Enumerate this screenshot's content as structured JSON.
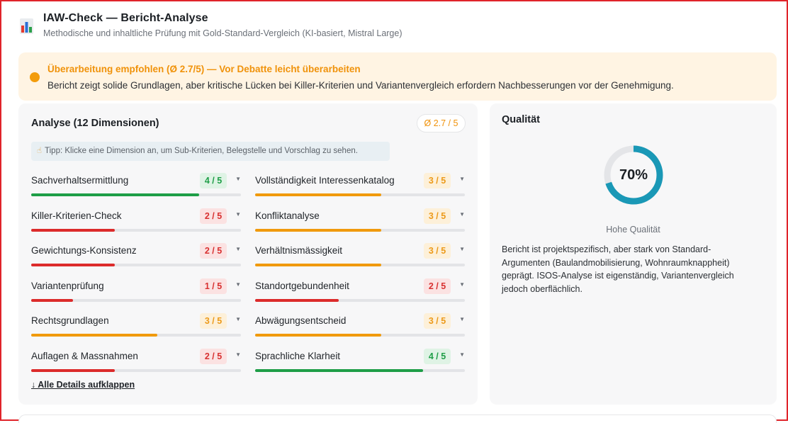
{
  "header": {
    "title": "IAW-Check — Bericht-Analyse",
    "subtitle": "Methodische und inhaltliche Prüfung mit Gold-Standard-Vergleich (KI-basiert, Mistral Large)",
    "icon": "bar-chart-icon"
  },
  "banner": {
    "title": "Überarbeitung empfohlen (Ø 2.7/5) — Vor Debatte leicht überarbeiten",
    "text": "Bericht zeigt solide Grundlagen, aber kritische Lücken bei Killer-Kriterien und Variantenvergleich erfordern Nachbesserungen vor der Genehmigung.",
    "color": "#f39c0b"
  },
  "analysis": {
    "title": "Analyse (12 Dimensionen)",
    "average_badge": "Ø 2.7 / 5",
    "tip": "Tipp: Klicke eine Dimension an, um Sub-Kriterien, Belegstelle und Vorschlag zu sehen.",
    "tip_icon": "pointing-hand-icon",
    "expand_all": "↓ Alle Details aufklappen",
    "colors": {
      "good": "#1e9e47",
      "medium": "#f09a0d",
      "bad": "#dc2b2b"
    },
    "dimensions": [
      {
        "name": "Sachverhaltsermittlung",
        "score_label": "4 / 5",
        "score": 4,
        "level": "good"
      },
      {
        "name": "Vollständigkeit Interessenkatalog",
        "score_label": "3 / 5",
        "score": 3,
        "level": "medium"
      },
      {
        "name": "Killer-Kriterien-Check",
        "score_label": "2 / 5",
        "score": 2,
        "level": "bad"
      },
      {
        "name": "Konfliktanalyse",
        "score_label": "3 / 5",
        "score": 3,
        "level": "medium"
      },
      {
        "name": "Gewichtungs-Konsistenz",
        "score_label": "2 / 5",
        "score": 2,
        "level": "bad"
      },
      {
        "name": "Verhältnismässigkeit",
        "score_label": "3 / 5",
        "score": 3,
        "level": "medium"
      },
      {
        "name": "Variantenprüfung",
        "score_label": "1 / 5",
        "score": 1,
        "level": "bad"
      },
      {
        "name": "Standortgebundenheit",
        "score_label": "2 / 5",
        "score": 2,
        "level": "bad"
      },
      {
        "name": "Rechtsgrundlagen",
        "score_label": "3 / 5",
        "score": 3,
        "level": "medium"
      },
      {
        "name": "Abwägungsentscheid",
        "score_label": "3 / 5",
        "score": 3,
        "level": "medium"
      },
      {
        "name": "Auflagen & Massnahmen",
        "score_label": "2 / 5",
        "score": 2,
        "level": "bad"
      },
      {
        "name": "Sprachliche Klarheit",
        "score_label": "4 / 5",
        "score": 4,
        "level": "good"
      }
    ]
  },
  "quality": {
    "title": "Qualität",
    "percent_label": "70%",
    "percent": 70,
    "level": "Hohe Qualität",
    "ring_color": "#1a98b6",
    "description": "Bericht ist projektspezifisch, aber stark von Standard-Argumenten (Baulandmobilisierung, Wohnraumknappheit) geprägt. ISOS-Analyse ist eigenständig, Variantenvergleich jedoch oberflächlich."
  }
}
